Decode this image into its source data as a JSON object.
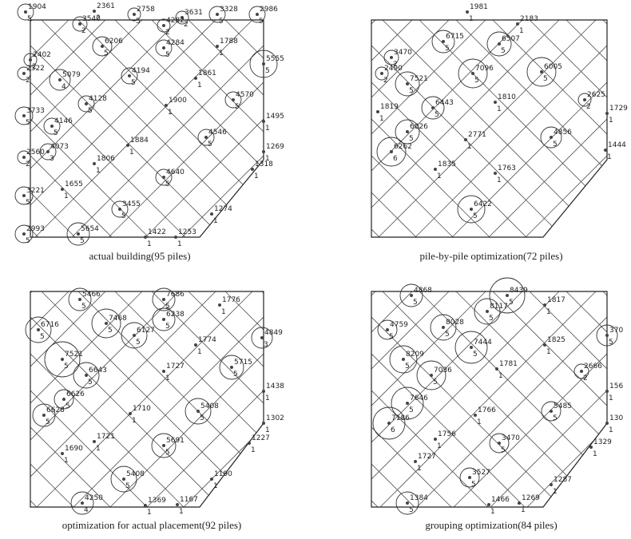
{
  "panels": [
    {
      "caption": "actual building(95 piles)",
      "piles": [
        {
          "load": "1904",
          "group": "5"
        },
        {
          "load": "3540",
          "group": "2"
        },
        {
          "load": "2361",
          "group": "2"
        },
        {
          "load": "2758",
          "group": "5"
        },
        {
          "load": "3631",
          "group": "2"
        },
        {
          "load": "4282",
          "group": "2"
        },
        {
          "load": "3328",
          "group": "5"
        },
        {
          "load": "2986",
          "group": "5"
        },
        {
          "load": "6206",
          "group": "5"
        },
        {
          "load": "4284",
          "group": "5"
        },
        {
          "load": "1788",
          "group": "1"
        },
        {
          "load": "5555",
          "group": "5"
        },
        {
          "load": "2402",
          "group": "2"
        },
        {
          "load": "2322",
          "group": "2"
        },
        {
          "load": "5079",
          "group": "4"
        },
        {
          "load": "4194",
          "group": "5"
        },
        {
          "load": "1861",
          "group": "1"
        },
        {
          "load": "4570",
          "group": "5"
        },
        {
          "load": "4128",
          "group": "5"
        },
        {
          "load": "1900",
          "group": "1"
        },
        {
          "load": "1495",
          "group": "1"
        },
        {
          "load": "3733",
          "group": "5"
        },
        {
          "load": "4146",
          "group": "5"
        },
        {
          "load": "1884",
          "group": "1"
        },
        {
          "load": "4546",
          "group": "5"
        },
        {
          "load": "4073",
          "group": "3"
        },
        {
          "load": "2560",
          "group": "2"
        },
        {
          "load": "1269",
          "group": "1"
        },
        {
          "load": "1806",
          "group": "1"
        },
        {
          "load": "4640",
          "group": "5"
        },
        {
          "load": "1318",
          "group": "1"
        },
        {
          "load": "3221",
          "group": "5"
        },
        {
          "load": "1655",
          "group": "1"
        },
        {
          "load": "3455",
          "group": "5"
        },
        {
          "load": "1274",
          "group": "1"
        },
        {
          "load": "2993",
          "group": "5"
        },
        {
          "load": "5654",
          "group": "5"
        },
        {
          "load": "1422",
          "group": "1"
        },
        {
          "load": "1253",
          "group": "1"
        }
      ]
    },
    {
      "caption": "pile-by-pile optimization(72 piles)",
      "piles": [
        {
          "load": "1981",
          "group": "1"
        },
        {
          "load": "2183",
          "group": "1"
        },
        {
          "load": "6715",
          "group": "5"
        },
        {
          "load": "6507",
          "group": "5"
        },
        {
          "load": "3470",
          "group": "2"
        },
        {
          "load": "2490",
          "group": "2"
        },
        {
          "load": "7521",
          "group": "5"
        },
        {
          "load": "7096",
          "group": "5"
        },
        {
          "load": "6005",
          "group": "5"
        },
        {
          "load": "2625",
          "group": "2"
        },
        {
          "load": "1729",
          "group": "1"
        },
        {
          "load": "1819",
          "group": "1"
        },
        {
          "load": "6443",
          "group": "5"
        },
        {
          "load": "1810",
          "group": "1"
        },
        {
          "load": "6026",
          "group": "5"
        },
        {
          "load": "2771",
          "group": "1"
        },
        {
          "load": "4856",
          "group": "5"
        },
        {
          "load": "1444",
          "group": "1"
        },
        {
          "load": "6262",
          "group": "6"
        },
        {
          "load": "1835",
          "group": "1"
        },
        {
          "load": "1763",
          "group": "1"
        },
        {
          "load": "6422",
          "group": "5"
        }
      ]
    },
    {
      "caption": "optimization for actual placement(92 piles)",
      "piles": [
        {
          "load": "5466",
          "group": "5"
        },
        {
          "load": "7468",
          "group": "5"
        },
        {
          "load": "7686",
          "group": "5"
        },
        {
          "load": "6238",
          "group": "5"
        },
        {
          "load": "1776",
          "group": "1"
        },
        {
          "load": "6716",
          "group": "5"
        },
        {
          "load": "7521",
          "group": "5"
        },
        {
          "load": "6127",
          "group": "5"
        },
        {
          "load": "1774",
          "group": "1"
        },
        {
          "load": "4849",
          "group": "3"
        },
        {
          "load": "6643",
          "group": "5"
        },
        {
          "load": "1727",
          "group": "1"
        },
        {
          "load": "5715",
          "group": "5"
        },
        {
          "load": "1438",
          "group": "1"
        },
        {
          "load": "6626",
          "group": "5"
        },
        {
          "load": "6628",
          "group": "5"
        },
        {
          "load": "1710",
          "group": "1"
        },
        {
          "load": "5408",
          "group": "5"
        },
        {
          "load": "1302",
          "group": "1"
        },
        {
          "load": "1721",
          "group": "1"
        },
        {
          "load": "5691",
          "group": "5"
        },
        {
          "load": "1227",
          "group": "1"
        },
        {
          "load": "1690",
          "group": "1"
        },
        {
          "load": "5408",
          "group": "5"
        },
        {
          "load": "1190",
          "group": "1"
        },
        {
          "load": "4250",
          "group": "4"
        },
        {
          "load": "1369",
          "group": "1"
        },
        {
          "load": "1167",
          "group": "1"
        }
      ]
    },
    {
      "caption": "grouping optimization(84 piles)",
      "piles": [
        {
          "load": "4868",
          "group": "5"
        },
        {
          "load": "8439",
          "group": "5"
        },
        {
          "load": "8028",
          "group": "5"
        },
        {
          "load": "8117",
          "group": "5"
        },
        {
          "load": "1817",
          "group": "1"
        },
        {
          "load": "4759",
          "group": "5"
        },
        {
          "load": "370",
          "group": "5"
        },
        {
          "load": "8209",
          "group": "5"
        },
        {
          "load": "7444",
          "group": "5"
        },
        {
          "load": "1825",
          "group": "1"
        },
        {
          "load": "7036",
          "group": "5"
        },
        {
          "load": "1781",
          "group": "1"
        },
        {
          "load": "2666",
          "group": "2"
        },
        {
          "load": "156",
          "group": "1"
        },
        {
          "load": "7646",
          "group": "5"
        },
        {
          "load": "7186",
          "group": "6"
        },
        {
          "load": "1766",
          "group": "1"
        },
        {
          "load": "5485",
          "group": "5"
        },
        {
          "load": "130",
          "group": "1"
        },
        {
          "load": "1756",
          "group": "1"
        },
        {
          "load": "3470",
          "group": "5"
        },
        {
          "load": "1329",
          "group": "1"
        },
        {
          "load": "1727",
          "group": "1"
        },
        {
          "load": "3527",
          "group": "5"
        },
        {
          "load": "1287",
          "group": "1"
        },
        {
          "load": "1384",
          "group": "5"
        },
        {
          "load": "1466",
          "group": "1"
        },
        {
          "load": "1269",
          "group": "1"
        }
      ]
    }
  ]
}
